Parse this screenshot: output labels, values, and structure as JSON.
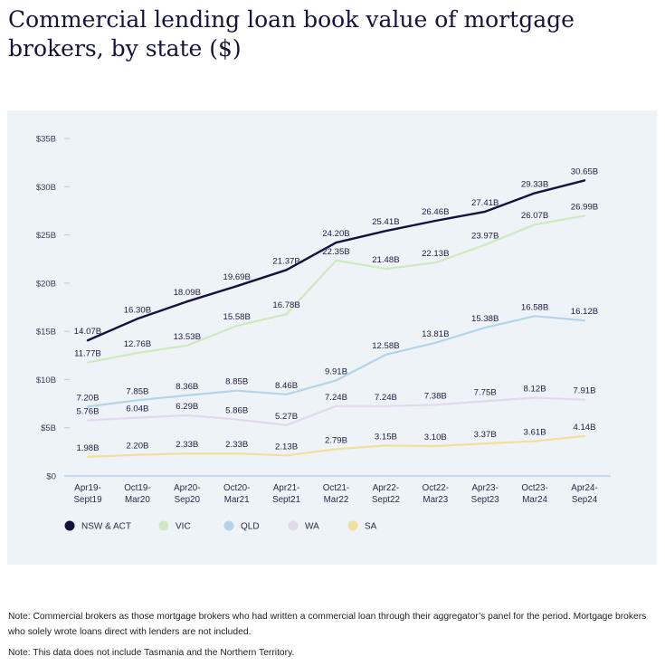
{
  "title": "Commercial lending loan book value of mortgage brokers, by state ($)",
  "notes": [
    "Note: Commercial brokers as those mortgage brokers who had written a commercial loan through their aggregator’s panel for the period. Mortgage brokers who solely wrote loans direct with lenders are not included.",
    "Note: This data does not include Tasmania and the Northern Territory."
  ],
  "chart_data": {
    "type": "line",
    "title": "Commercial lending loan book value of mortgage brokers, by state ($)",
    "xlabel": "",
    "ylabel": "",
    "ylim": [
      0,
      35
    ],
    "y_ticks": [
      "$0",
      "$5B",
      "$10B",
      "$15B",
      "$20B",
      "$25B",
      "$30B",
      "$35B"
    ],
    "y_tick_values": [
      0,
      5,
      10,
      15,
      20,
      25,
      30,
      35
    ],
    "grid": false,
    "legend_position": "bottom-left",
    "categories": [
      [
        "Apr19-",
        "Sept19"
      ],
      [
        "Oct19-",
        "Mar20"
      ],
      [
        "Apr20-",
        "Sep20"
      ],
      [
        "Oct20-",
        "Mar21"
      ],
      [
        "Apr21-",
        "Sept21"
      ],
      [
        "Oct21-",
        "Mar22"
      ],
      [
        "Apr22-",
        "Sept22"
      ],
      [
        "Oct22-",
        "Mar23"
      ],
      [
        "Apr23-",
        "Sept23"
      ],
      [
        "Oct23-",
        "Mar24"
      ],
      [
        "Apr24-",
        "Sep24"
      ]
    ],
    "series": [
      {
        "name": "NSW & ACT",
        "color": "#14123d",
        "values": [
          14.07,
          16.3,
          18.09,
          19.69,
          21.37,
          24.2,
          25.41,
          26.46,
          27.41,
          29.33,
          30.65
        ],
        "labels": [
          "14.07B",
          "16.30B",
          "18.09B",
          "19.69B",
          "21.37B",
          "24.20B",
          "25.41B",
          "26.46B",
          "27.41B",
          "29.33B",
          "30.65B"
        ]
      },
      {
        "name": "VIC",
        "color": "#cfe8c0",
        "values": [
          11.77,
          12.76,
          13.53,
          15.58,
          16.78,
          22.35,
          21.48,
          22.13,
          23.97,
          26.07,
          26.99
        ],
        "labels": [
          "11.77B",
          "12.76B",
          "13.53B",
          "15.58B",
          "16.78B",
          "22.35B",
          "21.48B",
          "22.13B",
          "23.97B",
          "26.07B",
          "26.99B"
        ]
      },
      {
        "name": "QLD",
        "color": "#b5d4ea",
        "values": [
          7.2,
          7.85,
          8.36,
          8.85,
          8.46,
          9.91,
          12.58,
          13.81,
          15.38,
          16.58,
          16.12
        ],
        "labels": [
          "7.20B",
          "7.85B",
          "8.36B",
          "8.85B",
          "8.46B",
          "9.91B",
          "12.58B",
          "13.81B",
          "15.38B",
          "16.58B",
          "16.12B"
        ]
      },
      {
        "name": "WA",
        "color": "#e2d9ee",
        "values": [
          5.76,
          6.04,
          6.29,
          5.86,
          5.27,
          7.24,
          7.24,
          7.38,
          7.75,
          8.12,
          7.91
        ],
        "labels": [
          "5.76B",
          "6.04B",
          "6.29B",
          "5.86B",
          "5.27B",
          "7.24B",
          "7.24B",
          "7.38B",
          "7.75B",
          "8.12B",
          "7.91B"
        ]
      },
      {
        "name": "SA",
        "color": "#f3df9d",
        "values": [
          1.98,
          2.2,
          2.33,
          2.33,
          2.13,
          2.79,
          3.15,
          3.1,
          3.37,
          3.61,
          4.14
        ],
        "labels": [
          "1.98B",
          "2.20B",
          "2.33B",
          "2.33B",
          "2.13B",
          "2.79B",
          "3.15B",
          "3.10B",
          "3.37B",
          "3.61B",
          "4.14B"
        ]
      }
    ]
  }
}
